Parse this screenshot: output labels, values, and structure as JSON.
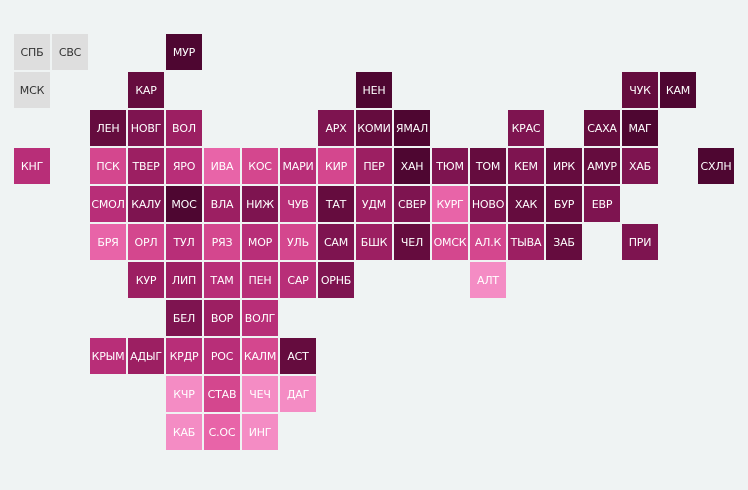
{
  "colors": {
    "background": "#eff3f3",
    "shade_1": "#f48cc4",
    "shade_2": "#e864a8",
    "shade_3": "#d4478e",
    "shade_4": "#b82e78",
    "shade_5": "#9c1f62",
    "shade_6": "#7e1450",
    "shade_7": "#650c3e",
    "shade_8": "#4e0631",
    "no_data": "#dedede"
  },
  "regions": [
    {
      "label": "СПБ",
      "row": 0,
      "col": 0,
      "shade": "no_data"
    },
    {
      "label": "СВС",
      "row": 0,
      "col": 1,
      "shade": "no_data"
    },
    {
      "label": "МУР",
      "row": 0,
      "col": 4,
      "shade": "shade_8"
    },
    {
      "label": "МСК",
      "row": 1,
      "col": 0,
      "shade": "no_data"
    },
    {
      "label": "КАР",
      "row": 1,
      "col": 3,
      "shade": "shade_7"
    },
    {
      "label": "НЕН",
      "row": 1,
      "col": 9,
      "shade": "shade_8"
    },
    {
      "label": "ЧУК",
      "row": 1,
      "col": 16,
      "shade": "shade_7"
    },
    {
      "label": "КАМ",
      "row": 1,
      "col": 17,
      "shade": "shade_8"
    },
    {
      "label": "ЛЕН",
      "row": 2,
      "col": 2,
      "shade": "shade_7"
    },
    {
      "label": "НОВГ",
      "row": 2,
      "col": 3,
      "shade": "shade_6"
    },
    {
      "label": "ВОЛ",
      "row": 2,
      "col": 4,
      "shade": "shade_5"
    },
    {
      "label": "АРХ",
      "row": 2,
      "col": 8,
      "shade": "shade_6"
    },
    {
      "label": "КОМИ",
      "row": 2,
      "col": 9,
      "shade": "shade_7"
    },
    {
      "label": "ЯМАЛ",
      "row": 2,
      "col": 10,
      "shade": "shade_8"
    },
    {
      "label": "КРАС",
      "row": 2,
      "col": 13,
      "shade": "shade_6"
    },
    {
      "label": "САХА",
      "row": 2,
      "col": 15,
      "shade": "shade_7"
    },
    {
      "label": "МАГ",
      "row": 2,
      "col": 16,
      "shade": "shade_8"
    },
    {
      "label": "КНГ",
      "row": 3,
      "col": 0,
      "shade": "shade_4"
    },
    {
      "label": "ПСК",
      "row": 3,
      "col": 2,
      "shade": "shade_3"
    },
    {
      "label": "ТВЕР",
      "row": 3,
      "col": 3,
      "shade": "shade_5"
    },
    {
      "label": "ЯРО",
      "row": 3,
      "col": 4,
      "shade": "shade_4"
    },
    {
      "label": "ИВА",
      "row": 3,
      "col": 5,
      "shade": "shade_2"
    },
    {
      "label": "КОС",
      "row": 3,
      "col": 6,
      "shade": "shade_3"
    },
    {
      "label": "МАРИ",
      "row": 3,
      "col": 7,
      "shade": "shade_4"
    },
    {
      "label": "КИР",
      "row": 3,
      "col": 8,
      "shade": "shade_3"
    },
    {
      "label": "ПЕР",
      "row": 3,
      "col": 9,
      "shade": "shade_5"
    },
    {
      "label": "ХАН",
      "row": 3,
      "col": 10,
      "shade": "shade_8"
    },
    {
      "label": "ТЮМ",
      "row": 3,
      "col": 11,
      "shade": "shade_6"
    },
    {
      "label": "ТОМ",
      "row": 3,
      "col": 12,
      "shade": "shade_7"
    },
    {
      "label": "КЕМ",
      "row": 3,
      "col": 13,
      "shade": "shade_6"
    },
    {
      "label": "ИРК",
      "row": 3,
      "col": 14,
      "shade": "shade_7"
    },
    {
      "label": "АМУР",
      "row": 3,
      "col": 15,
      "shade": "shade_7"
    },
    {
      "label": "ХАБ",
      "row": 3,
      "col": 16,
      "shade": "shade_6"
    },
    {
      "label": "СХЛН",
      "row": 3,
      "col": 18,
      "shade": "shade_8"
    },
    {
      "label": "СМОЛ",
      "row": 4,
      "col": 2,
      "shade": "shade_4"
    },
    {
      "label": "КАЛУ",
      "row": 4,
      "col": 3,
      "shade": "shade_6"
    },
    {
      "label": "МОС",
      "row": 4,
      "col": 4,
      "shade": "shade_8"
    },
    {
      "label": "ВЛА",
      "row": 4,
      "col": 5,
      "shade": "shade_5"
    },
    {
      "label": "НИЖ",
      "row": 4,
      "col": 6,
      "shade": "shade_6"
    },
    {
      "label": "ЧУВ",
      "row": 4,
      "col": 7,
      "shade": "shade_4"
    },
    {
      "label": "ТАТ",
      "row": 4,
      "col": 8,
      "shade": "shade_7"
    },
    {
      "label": "УДМ",
      "row": 4,
      "col": 9,
      "shade": "shade_5"
    },
    {
      "label": "СВЕР",
      "row": 4,
      "col": 10,
      "shade": "shade_6"
    },
    {
      "label": "КУРГ",
      "row": 4,
      "col": 11,
      "shade": "shade_2"
    },
    {
      "label": "НОВО",
      "row": 4,
      "col": 12,
      "shade": "shade_6"
    },
    {
      "label": "ХАК",
      "row": 4,
      "col": 13,
      "shade": "shade_7"
    },
    {
      "label": "БУР",
      "row": 4,
      "col": 14,
      "shade": "shade_7"
    },
    {
      "label": "ЕВР",
      "row": 4,
      "col": 15,
      "shade": "shade_6"
    },
    {
      "label": "БРЯ",
      "row": 5,
      "col": 2,
      "shade": "shade_2"
    },
    {
      "label": "ОРЛ",
      "row": 5,
      "col": 3,
      "shade": "shade_3"
    },
    {
      "label": "ТУЛ",
      "row": 5,
      "col": 4,
      "shade": "shade_4"
    },
    {
      "label": "РЯЗ",
      "row": 5,
      "col": 5,
      "shade": "shade_3"
    },
    {
      "label": "МОР",
      "row": 5,
      "col": 6,
      "shade": "shade_4"
    },
    {
      "label": "УЛЬ",
      "row": 5,
      "col": 7,
      "shade": "shade_3"
    },
    {
      "label": "САМ",
      "row": 5,
      "col": 8,
      "shade": "shade_6"
    },
    {
      "label": "БШК",
      "row": 5,
      "col": 9,
      "shade": "shade_5"
    },
    {
      "label": "ЧЕЛ",
      "row": 5,
      "col": 10,
      "shade": "shade_7"
    },
    {
      "label": "ОМСК",
      "row": 5,
      "col": 11,
      "shade": "shade_3"
    },
    {
      "label": "АЛ.К",
      "row": 5,
      "col": 12,
      "shade": "shade_3"
    },
    {
      "label": "ТЫВА",
      "row": 5,
      "col": 13,
      "shade": "shade_5"
    },
    {
      "label": "ЗАБ",
      "row": 5,
      "col": 14,
      "shade": "shade_7"
    },
    {
      "label": "ПРИ",
      "row": 5,
      "col": 16,
      "shade": "shade_6"
    },
    {
      "label": "КУР",
      "row": 6,
      "col": 3,
      "shade": "shade_5"
    },
    {
      "label": "ЛИП",
      "row": 6,
      "col": 4,
      "shade": "shade_5"
    },
    {
      "label": "ТАМ",
      "row": 6,
      "col": 5,
      "shade": "shade_4"
    },
    {
      "label": "ПЕН",
      "row": 6,
      "col": 6,
      "shade": "shade_4"
    },
    {
      "label": "САР",
      "row": 6,
      "col": 7,
      "shade": "shade_4"
    },
    {
      "label": "ОРНБ",
      "row": 6,
      "col": 8,
      "shade": "shade_6"
    },
    {
      "label": "АЛТ",
      "row": 6,
      "col": 12,
      "shade": "shade_1"
    },
    {
      "label": "БЕЛ",
      "row": 7,
      "col": 4,
      "shade": "shade_6"
    },
    {
      "label": "ВОР",
      "row": 7,
      "col": 5,
      "shade": "shade_5"
    },
    {
      "label": "ВОЛГ",
      "row": 7,
      "col": 6,
      "shade": "shade_4"
    },
    {
      "label": "КРЫМ",
      "row": 8,
      "col": 2,
      "shade": "shade_4"
    },
    {
      "label": "АДЫГ",
      "row": 8,
      "col": 3,
      "shade": "shade_5"
    },
    {
      "label": "КРДР",
      "row": 8,
      "col": 4,
      "shade": "shade_4"
    },
    {
      "label": "РОС",
      "row": 8,
      "col": 5,
      "shade": "shade_4"
    },
    {
      "label": "КАЛМ",
      "row": 8,
      "col": 6,
      "shade": "shade_3"
    },
    {
      "label": "АСТ",
      "row": 8,
      "col": 7,
      "shade": "shade_7"
    },
    {
      "label": "КЧР",
      "row": 9,
      "col": 4,
      "shade": "shade_1"
    },
    {
      "label": "СТАВ",
      "row": 9,
      "col": 5,
      "shade": "shade_3"
    },
    {
      "label": "ЧЕЧ",
      "row": 9,
      "col": 6,
      "shade": "shade_1"
    },
    {
      "label": "ДАГ",
      "row": 9,
      "col": 7,
      "shade": "shade_1"
    },
    {
      "label": "КАБ",
      "row": 10,
      "col": 4,
      "shade": "shade_1"
    },
    {
      "label": "С.ОС",
      "row": 10,
      "col": 5,
      "shade": "shade_2"
    },
    {
      "label": "ИНГ",
      "row": 10,
      "col": 6,
      "shade": "shade_1"
    }
  ]
}
